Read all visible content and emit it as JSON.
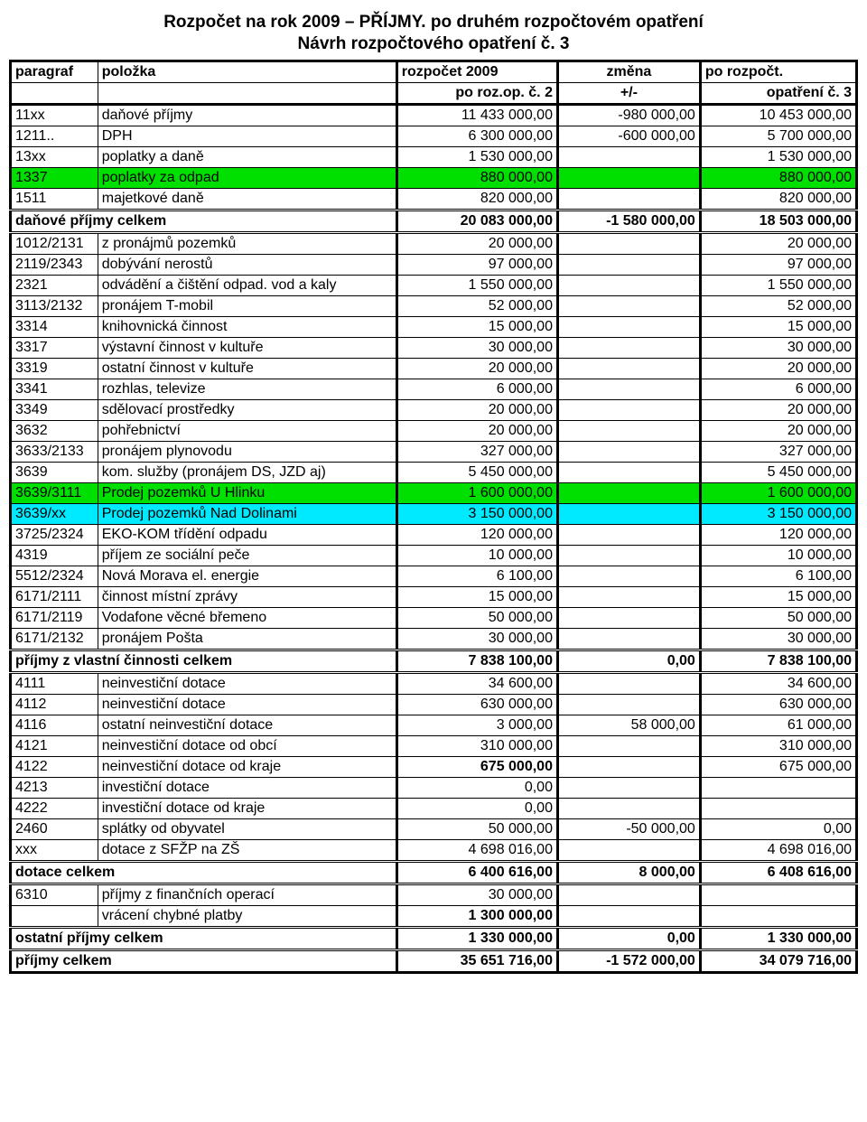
{
  "title": "Rozpočet na rok 2009 – PŘÍJMY. po druhém rozpočtovém opatření",
  "subtitle": "Návrh rozpočtového opatření  č. 3",
  "header1": {
    "c1": "paragraf",
    "c2": "položka",
    "c3": "rozpočet 2009",
    "c4": "změna",
    "c5": "po rozpočt."
  },
  "header2": {
    "c3": "po roz.op. č. 2",
    "c4": "+/-",
    "c5": "opatření č. 3"
  },
  "rows": [
    {
      "c1": "11xx",
      "c2": "daňové příjmy",
      "c3": "11 433 000,00",
      "c4": "-980 000,00",
      "c5": "10 453 000,00"
    },
    {
      "c1": "1211..",
      "c2": "DPH",
      "c3": "6 300 000,00",
      "c4": "-600 000,00",
      "c5": "5 700 000,00"
    },
    {
      "c1": "13xx",
      "c2": "poplatky a daně",
      "c3": "1 530 000,00",
      "c4": "",
      "c5": "1 530 000,00"
    },
    {
      "c1": "1337",
      "c2": "poplatky za odpad",
      "c3": "880 000,00",
      "c4": "",
      "c5": "880 000,00",
      "hl": "green"
    },
    {
      "c1": "1511",
      "c2": "majetkové daně",
      "c3": "820 000,00",
      "c4": "",
      "c5": "820 000,00"
    },
    {
      "c1": "daňové příjmy celkem",
      "span": true,
      "c3": "20 083 000,00",
      "c4": "-1 580 000,00",
      "c5": "18 503 000,00",
      "bold": true,
      "sep": "dbl"
    },
    {
      "c1": "1012/2131",
      "c2": "z pronájmů pozemků",
      "c3": "20 000,00",
      "c4": "",
      "c5": "20 000,00"
    },
    {
      "c1": "2119/2343",
      "c2": "dobývání nerostů",
      "c3": "97 000,00",
      "c4": "",
      "c5": "97 000,00"
    },
    {
      "c1": "2321",
      "c2": "odvádění a čištění odpad. vod a kaly",
      "c3": "1 550 000,00",
      "c4": "",
      "c5": "1 550 000,00"
    },
    {
      "c1": "3113/2132",
      "c2": "pronájem T-mobil",
      "c3": "52 000,00",
      "c4": "",
      "c5": "52 000,00"
    },
    {
      "c1": "3314",
      "c2": "knihovnická činnost",
      "c3": "15 000,00",
      "c4": "",
      "c5": "15 000,00"
    },
    {
      "c1": "3317",
      "c2": "výstavní činnost v kultuře",
      "c3": "30 000,00",
      "c4": "",
      "c5": "30 000,00"
    },
    {
      "c1": "3319",
      "c2": "ostatní činnost v kultuře",
      "c3": "20 000,00",
      "c4": "",
      "c5": "20 000,00"
    },
    {
      "c1": "3341",
      "c2": "rozhlas, televize",
      "c3": "6 000,00",
      "c4": "",
      "c5": "6 000,00"
    },
    {
      "c1": "3349",
      "c2": "sdělovací prostředky",
      "c3": "20 000,00",
      "c4": "",
      "c5": "20 000,00"
    },
    {
      "c1": "3632",
      "c2": "pohřebnictví",
      "c3": "20 000,00",
      "c4": "",
      "c5": "20 000,00"
    },
    {
      "c1": "3633/2133",
      "c2": "pronájem plynovodu",
      "c3": "327 000,00",
      "c4": "",
      "c5": "327 000,00"
    },
    {
      "c1": "3639",
      "c2": "kom. služby (pronájem DS, JZD aj)",
      "c3": "5 450 000,00",
      "c4": "",
      "c5": "5 450 000,00"
    },
    {
      "c1": "3639/3111",
      "c2": "Prodej pozemků U Hlinku",
      "c3": "1 600 000,00",
      "c4": "",
      "c5": "1 600 000,00",
      "hl": "green"
    },
    {
      "c1": "3639/xx",
      "c2": "Prodej pozemků Nad Dolinami",
      "c3": "3 150 000,00",
      "c4": "",
      "c5": "3 150 000,00",
      "hl": "cyan"
    },
    {
      "c1": "3725/2324",
      "c2": "EKO-KOM třídění odpadu",
      "c3": "120 000,00",
      "c4": "",
      "c5": "120 000,00"
    },
    {
      "c1": "4319",
      "c2": "příjem ze sociální peče",
      "c3": "10 000,00",
      "c4": "",
      "c5": "10 000,00"
    },
    {
      "c1": "5512/2324",
      "c2": "Nová Morava el. energie",
      "c3": "6 100,00",
      "c4": "",
      "c5": "6 100,00"
    },
    {
      "c1": "6171/2111",
      "c2": "činnost místní zprávy",
      "c3": "15 000,00",
      "c4": "",
      "c5": "15 000,00"
    },
    {
      "c1": "6171/2119",
      "c2": "Vodafone věcné břemeno",
      "c3": "50 000,00",
      "c4": "",
      "c5": "50 000,00"
    },
    {
      "c1": "6171/2132",
      "c2": "pronájem Pošta",
      "c3": "30 000,00",
      "c4": "",
      "c5": "30 000,00"
    },
    {
      "c1": "příjmy z vlastní činnosti celkem",
      "span": true,
      "c3": "7 838 100,00",
      "c4": "0,00",
      "c5": "7 838 100,00",
      "bold": true,
      "sep": "dbl"
    },
    {
      "c1": "4111",
      "c2": "neinvestiční dotace",
      "c3": "34 600,00",
      "c4": "",
      "c5": "34 600,00"
    },
    {
      "c1": "4112",
      "c2": "neinvestiční dotace",
      "c3": "630 000,00",
      "c4": "",
      "c5": "630 000,00"
    },
    {
      "c1": "4116",
      "c2": "ostatní neinvestiční dotace",
      "c3": "3 000,00",
      "c4": "58 000,00",
      "c5": "61 000,00"
    },
    {
      "c1": "4121",
      "c2": "neinvestiční dotace od obcí",
      "c3": "310 000,00",
      "c4": "",
      "c5": "310 000,00"
    },
    {
      "c1": "4122",
      "c2": "neinvestiční dotace od kraje",
      "c3": "675 000,00",
      "c4": "",
      "c5": "675 000,00",
      "b3": true
    },
    {
      "c1": "4213",
      "c2": "investiční dotace",
      "c3": "0,00",
      "c4": "",
      "c5": ""
    },
    {
      "c1": "4222",
      "c2": "investiční dotace od kraje",
      "c3": "0,00",
      "c4": "",
      "c5": ""
    },
    {
      "c1": "2460",
      "c2": "splátky od obyvatel",
      "c3": "50 000,00",
      "c4": "-50 000,00",
      "c5": "0,00"
    },
    {
      "c1": "xxx",
      "c2": "dotace z SFŽP na ZŠ",
      "c3": "4 698 016,00",
      "c4": "",
      "c5": "4 698 016,00"
    },
    {
      "c1": "dotace celkem",
      "span": true,
      "c3": "6 400 616,00",
      "c4": "8 000,00",
      "c5": "6 408 616,00",
      "bold": true,
      "sep": "dbl"
    },
    {
      "c1": "6310",
      "c2": "příjmy z finančních operací",
      "c3": "30 000,00",
      "c4": "",
      "c5": ""
    },
    {
      "c1": "",
      "c2": "vrácení chybné platby",
      "c3": "1 300 000,00",
      "c4": "",
      "c5": "",
      "b3": true
    },
    {
      "c1": "ostatní příjmy celkem",
      "span": true,
      "c3": "1 330 000,00",
      "c4": "0,00",
      "c5": "1 330 000,00",
      "bold": true,
      "sep": "dbl"
    },
    {
      "c1": "příjmy celkem",
      "span": true,
      "c3": "35 651 716,00",
      "c4": "-1 572 000,00",
      "c5": "34 079 716,00",
      "bold": true,
      "sep": "thick",
      "last": true
    }
  ]
}
